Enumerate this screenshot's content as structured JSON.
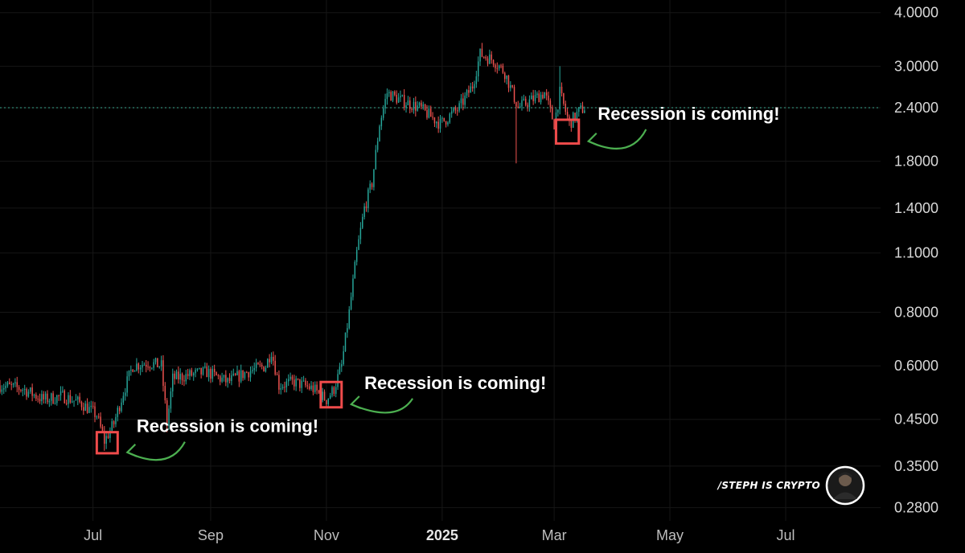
{
  "chart_data": {
    "type": "candlestick",
    "y_scale": "log",
    "ylim": [
      0.27,
      4.1
    ],
    "y_ticks": [
      "4.0000",
      "3.0000",
      "2.4000",
      "1.8000",
      "1.4000",
      "1.1000",
      "0.8000",
      "0.6000",
      "0.4500",
      "0.3500",
      "0.2800"
    ],
    "x_ticks": [
      {
        "label": "Jul",
        "date": "2024-07-01",
        "bold": false
      },
      {
        "label": "Sep",
        "date": "2024-09-01",
        "bold": false
      },
      {
        "label": "Nov",
        "date": "2024-11-01",
        "bold": false
      },
      {
        "label": "2025",
        "date": "2025-01-01",
        "bold": true
      },
      {
        "label": "Mar",
        "date": "2025-03-01",
        "bold": false
      },
      {
        "label": "May",
        "date": "2025-05-01",
        "bold": false
      },
      {
        "label": "Jul",
        "date": "2025-07-01",
        "bold": false
      }
    ],
    "xlim": [
      "2024-05-13",
      "2025-08-20"
    ],
    "last_price": 2.4,
    "grid": true,
    "up_color": "#26a69a",
    "down_color": "#ef5350",
    "close_path": [
      [
        "2024-05-13",
        0.54
      ],
      [
        "2024-05-25",
        0.53
      ],
      [
        "2024-06-05",
        0.5
      ],
      [
        "2024-06-15",
        0.51
      ],
      [
        "2024-06-25",
        0.49
      ],
      [
        "2024-07-03",
        0.46
      ],
      [
        "2024-07-07",
        0.4
      ],
      [
        "2024-07-12",
        0.44
      ],
      [
        "2024-07-17",
        0.52
      ],
      [
        "2024-07-22",
        0.6
      ],
      [
        "2024-07-30",
        0.61
      ],
      [
        "2024-08-06",
        0.6
      ],
      [
        "2024-08-09",
        0.44
      ],
      [
        "2024-08-12",
        0.56
      ],
      [
        "2024-08-20",
        0.57
      ],
      [
        "2024-08-30",
        0.58
      ],
      [
        "2024-09-10",
        0.55
      ],
      [
        "2024-09-20",
        0.58
      ],
      [
        "2024-09-30",
        0.6
      ],
      [
        "2024-10-03",
        0.65
      ],
      [
        "2024-10-07",
        0.54
      ],
      [
        "2024-10-15",
        0.55
      ],
      [
        "2024-10-25",
        0.53
      ],
      [
        "2024-11-01",
        0.5
      ],
      [
        "2024-11-05",
        0.53
      ],
      [
        "2024-11-09",
        0.6
      ],
      [
        "2024-11-13",
        0.8
      ],
      [
        "2024-11-17",
        1.1
      ],
      [
        "2024-11-21",
        1.4
      ],
      [
        "2024-11-25",
        1.6
      ],
      [
        "2024-11-29",
        2.2
      ],
      [
        "2024-12-03",
        2.6
      ],
      [
        "2024-12-10",
        2.5
      ],
      [
        "2024-12-20",
        2.4
      ],
      [
        "2024-12-31",
        2.2
      ],
      [
        "2025-01-10",
        2.4
      ],
      [
        "2025-01-17",
        2.7
      ],
      [
        "2025-01-21",
        3.2
      ],
      [
        "2025-01-28",
        3.1
      ],
      [
        "2025-02-03",
        2.9
      ],
      [
        "2025-02-10",
        2.4
      ],
      [
        "2025-02-17",
        2.5
      ],
      [
        "2025-02-24",
        2.6
      ],
      [
        "2025-03-01",
        2.2
      ],
      [
        "2025-03-04",
        2.6
      ],
      [
        "2025-03-09",
        2.2
      ],
      [
        "2025-03-14",
        2.35
      ],
      [
        "2025-03-17",
        2.4
      ]
    ],
    "wick_spikes": [
      {
        "date": "2024-07-07",
        "low": 0.38
      },
      {
        "date": "2024-08-09",
        "low": 0.42
      },
      {
        "date": "2025-02-09",
        "low": 1.78
      },
      {
        "date": "2025-03-04",
        "high": 3.0
      },
      {
        "date": "2025-01-22",
        "high": 3.4
      }
    ],
    "annotations": [
      {
        "text": "Recession is coming!",
        "box_date_range": [
          "2024-07-03",
          "2024-07-14"
        ],
        "box_price_range": [
          0.375,
          0.42
        ],
        "anchor_date": "2024-07-24",
        "anchor_price": 0.42
      },
      {
        "text": "Recession is coming!",
        "box_date_range": [
          "2024-10-29",
          "2024-11-09"
        ],
        "box_price_range": [
          0.48,
          0.55
        ],
        "anchor_date": "2024-11-21",
        "anchor_price": 0.53
      },
      {
        "text": "Recession is coming!",
        "box_date_range": [
          "2025-03-02",
          "2025-03-14"
        ],
        "box_price_range": [
          1.98,
          2.25
        ],
        "anchor_date": "2025-03-24",
        "anchor_price": 2.25
      }
    ]
  },
  "watermark": {
    "text": "/STEPH IS CRYPTO",
    "avatar": "avatar-portrait"
  }
}
